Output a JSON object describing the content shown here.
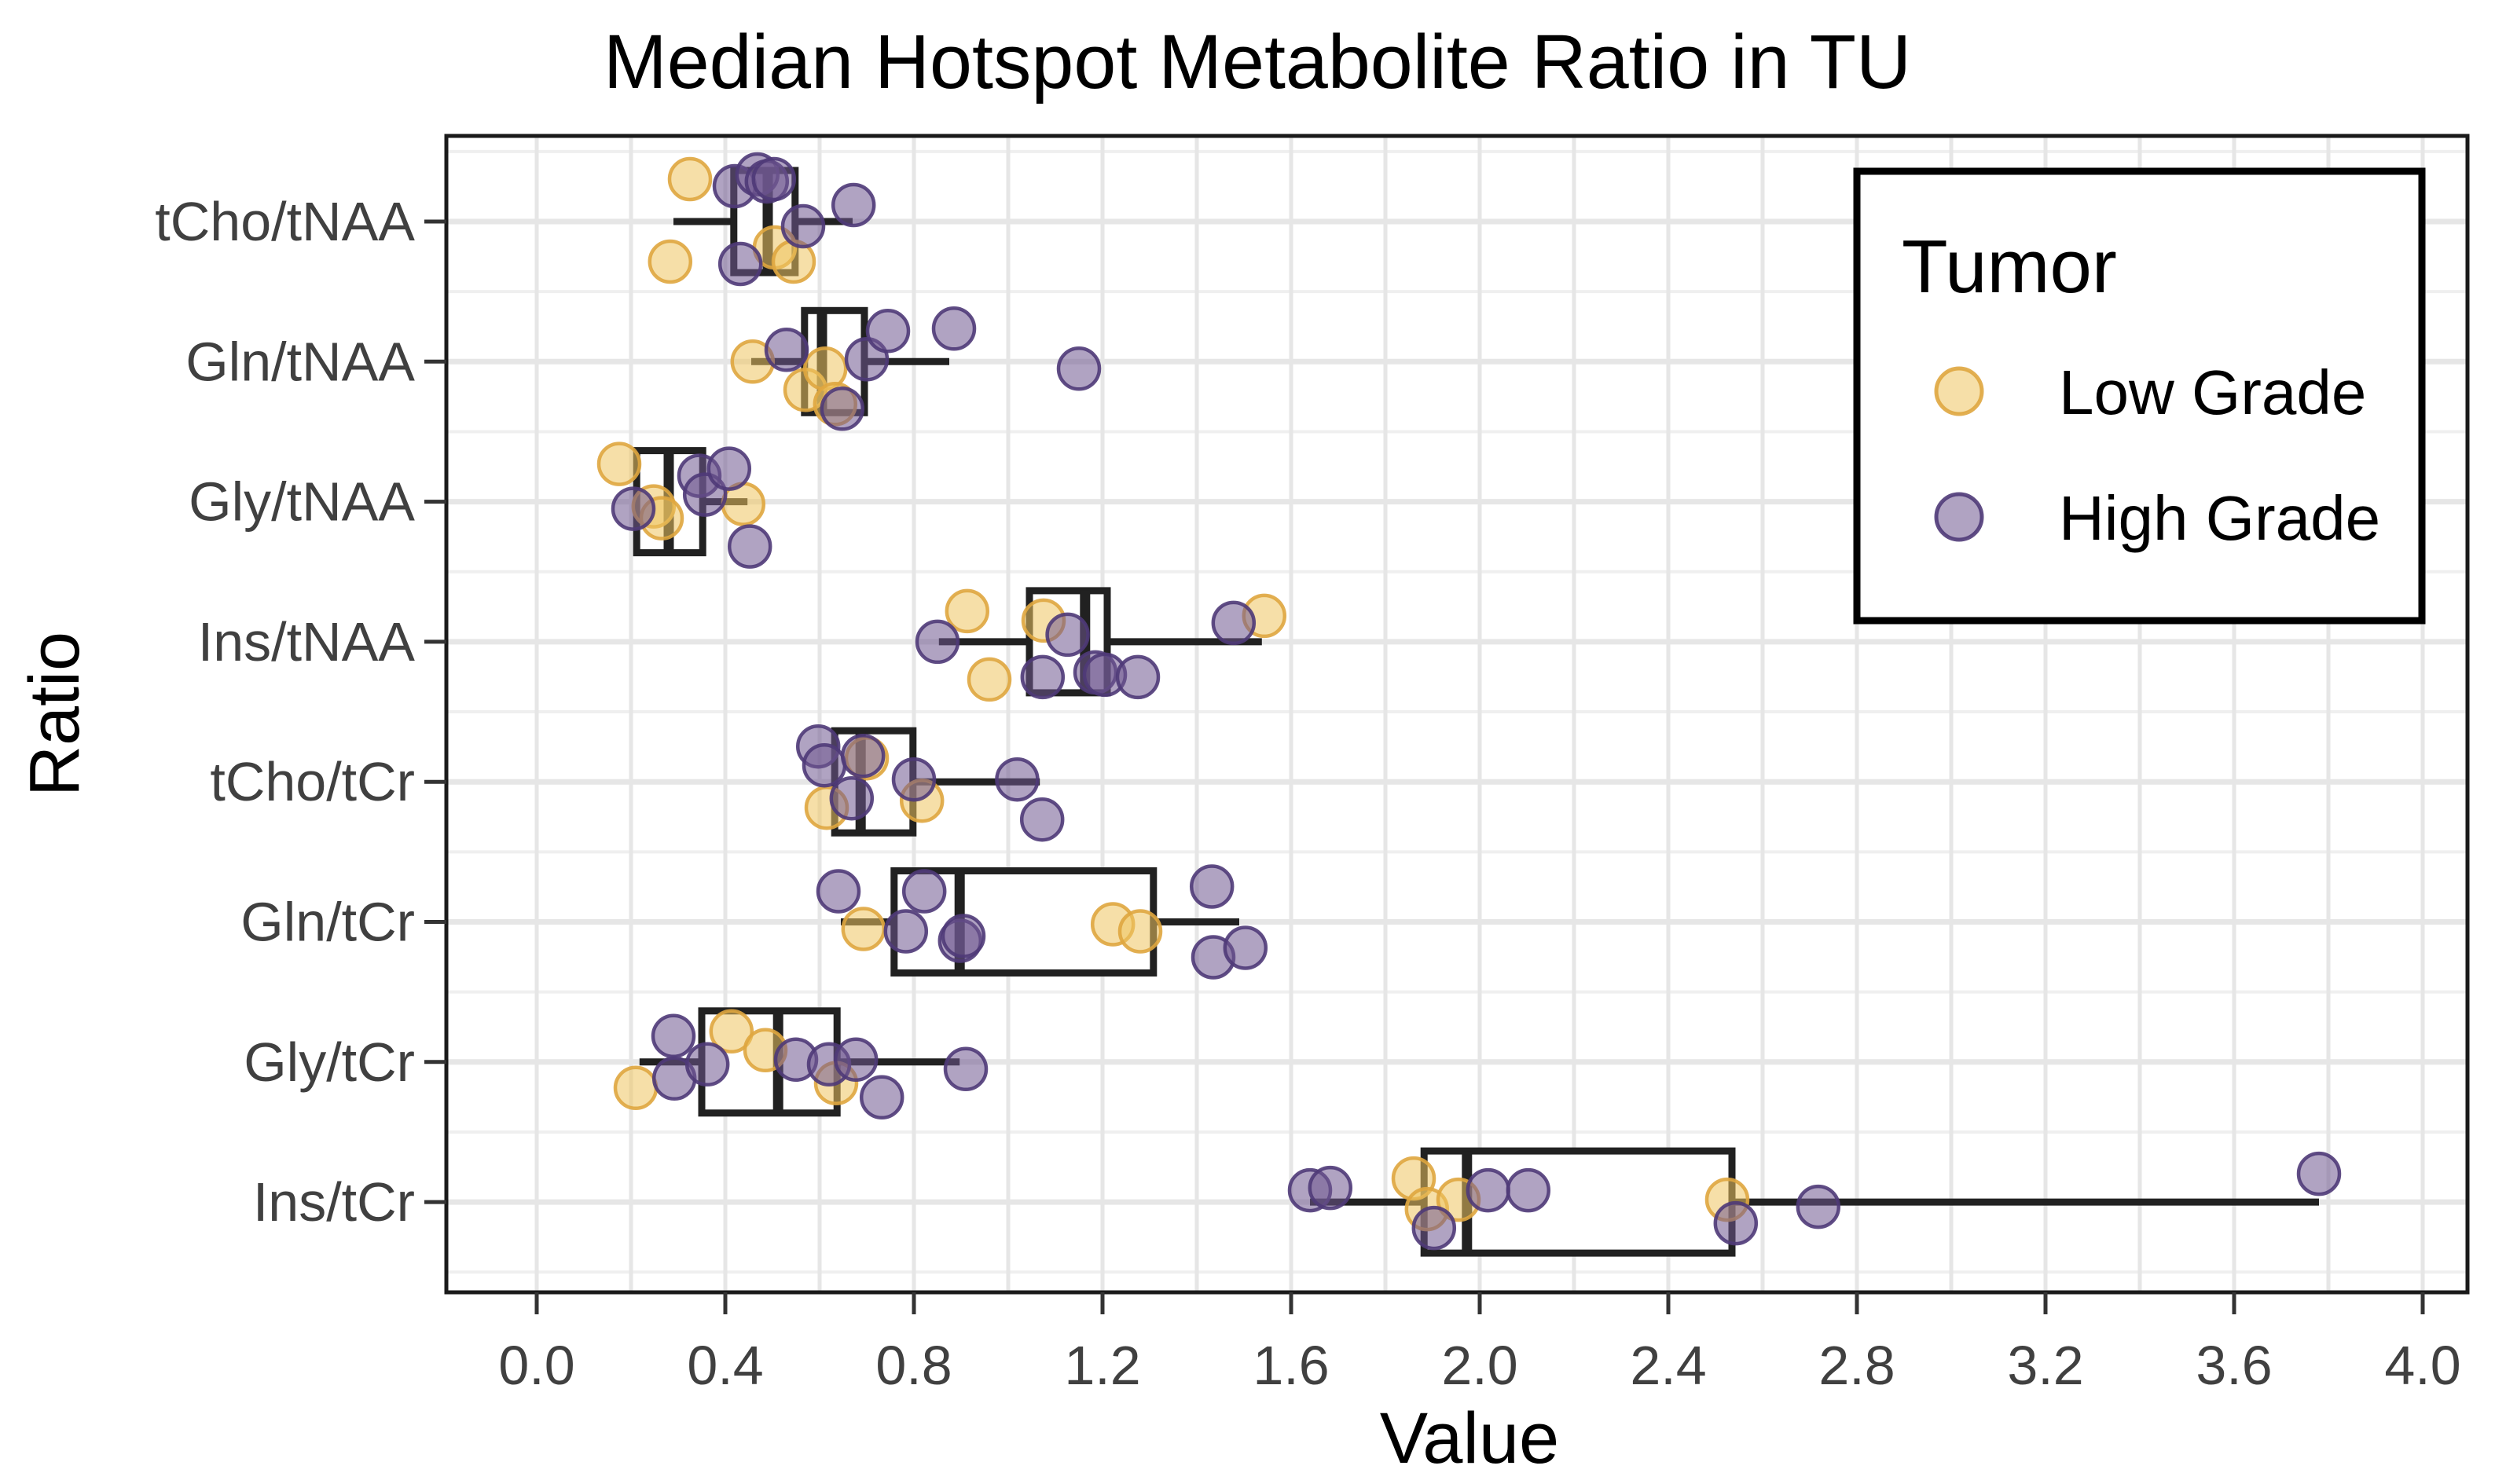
{
  "chart_data": {
    "type": "boxplot",
    "orientation": "horizontal",
    "title": "Median Hotspot Metabolite Ratio in TU",
    "xlabel": "Value",
    "ylabel": "Ratio",
    "x_ticks": [
      0.0,
      0.4,
      0.8,
      1.2,
      1.6,
      2.0,
      2.4,
      2.8,
      3.2,
      3.6,
      4.0
    ],
    "x_tick_labels": [
      "0.0",
      "0.4",
      "0.8",
      "1.2",
      "1.6",
      "2.0",
      "2.4",
      "2.8",
      "3.2",
      "3.6",
      "4.0"
    ],
    "x_minor_step": 0.2,
    "xlim": [
      -0.19,
      4.1
    ],
    "grid": true,
    "categories": [
      "tCho/tNAA",
      "Gln/tNAA",
      "Gly/tNAA",
      "Ins/tNAA",
      "tCho/tCr",
      "Gln/tCr",
      "Gly/tCr",
      "Ins/tCr"
    ],
    "legend": {
      "title": "Tumor",
      "position": "top-right",
      "entries": [
        {
          "id": "low",
          "label": "Low Grade",
          "fill": "#EFC561",
          "stroke": "#DFA63F"
        },
        {
          "id": "high",
          "label": "High Grade",
          "fill": "#6F5890",
          "stroke": "#4F3A78"
        }
      ]
    },
    "style": {
      "box_color": "#212121",
      "panel_border": "#1A1A1A",
      "grid_major": "#E6E6E6",
      "grid_minor": "#EFEFEF",
      "tick_color": "#333333",
      "axis_text": "#404040",
      "title_color": "#000000",
      "point_fill_opacity": 0.55,
      "point_stroke_opacity": 0.9
    },
    "rows": [
      {
        "ratio": "tCho/tNAA",
        "box": {
          "min": 0.29,
          "q1": 0.418,
          "median": 0.49,
          "q3": 0.548,
          "max": 0.67
        },
        "points": [
          {
            "group": "low",
            "value": 0.325,
            "jitter": -0.9
          },
          {
            "group": "low",
            "value": 0.283,
            "jitter": 0.85
          },
          {
            "group": "low",
            "value": 0.505,
            "jitter": 0.55
          },
          {
            "group": "low",
            "value": 0.545,
            "jitter": 0.85
          },
          {
            "group": "high",
            "value": 0.42,
            "jitter": -0.75
          },
          {
            "group": "high",
            "value": 0.432,
            "jitter": 0.9
          },
          {
            "group": "high",
            "value": 0.468,
            "jitter": -1.0
          },
          {
            "group": "high",
            "value": 0.488,
            "jitter": -0.85
          },
          {
            "group": "high",
            "value": 0.503,
            "jitter": -0.9
          },
          {
            "group": "high",
            "value": 0.565,
            "jitter": 0.1
          },
          {
            "group": "high",
            "value": 0.672,
            "jitter": -0.35
          }
        ]
      },
      {
        "ratio": "Gln/tNAA",
        "box": {
          "min": 0.455,
          "q1": 0.568,
          "median": 0.605,
          "q3": 0.695,
          "max": 0.875
        },
        "points": [
          {
            "group": "low",
            "value": 0.458,
            "jitter": 0.0
          },
          {
            "group": "low",
            "value": 0.57,
            "jitter": 0.6
          },
          {
            "group": "low",
            "value": 0.612,
            "jitter": 0.15
          },
          {
            "group": "low",
            "value": 0.633,
            "jitter": 0.9
          },
          {
            "group": "high",
            "value": 0.53,
            "jitter": -0.25
          },
          {
            "group": "high",
            "value": 0.648,
            "jitter": 1.0
          },
          {
            "group": "high",
            "value": 0.7,
            "jitter": -0.05
          },
          {
            "group": "high",
            "value": 0.745,
            "jitter": -0.65
          },
          {
            "group": "high",
            "value": 0.885,
            "jitter": -0.7
          },
          {
            "group": "high",
            "value": 1.15,
            "jitter": 0.15
          }
        ]
      },
      {
        "ratio": "Gly/tNAA",
        "box": {
          "min": 0.212,
          "q1": 0.212,
          "median": 0.28,
          "q3": 0.352,
          "max": 0.447
        },
        "points": [
          {
            "group": "low",
            "value": 0.175,
            "jitter": -0.8
          },
          {
            "group": "low",
            "value": 0.248,
            "jitter": 0.1
          },
          {
            "group": "low",
            "value": 0.265,
            "jitter": 0.35
          },
          {
            "group": "low",
            "value": 0.438,
            "jitter": 0.05
          },
          {
            "group": "high",
            "value": 0.205,
            "jitter": 0.15
          },
          {
            "group": "high",
            "value": 0.345,
            "jitter": -0.55
          },
          {
            "group": "high",
            "value": 0.357,
            "jitter": -0.15
          },
          {
            "group": "high",
            "value": 0.408,
            "jitter": -0.7
          },
          {
            "group": "high",
            "value": 0.452,
            "jitter": 0.95
          }
        ]
      },
      {
        "ratio": "Ins/tNAA",
        "box": {
          "min": 0.853,
          "q1": 1.045,
          "median": 1.163,
          "q3": 1.21,
          "max": 1.538
        },
        "points": [
          {
            "group": "low",
            "value": 0.913,
            "jitter": -0.65
          },
          {
            "group": "low",
            "value": 0.96,
            "jitter": 0.8
          },
          {
            "group": "low",
            "value": 1.075,
            "jitter": -0.45
          },
          {
            "group": "low",
            "value": 1.543,
            "jitter": -0.55
          },
          {
            "group": "high",
            "value": 0.85,
            "jitter": 0.0
          },
          {
            "group": "high",
            "value": 1.073,
            "jitter": 0.75
          },
          {
            "group": "high",
            "value": 1.126,
            "jitter": -0.15
          },
          {
            "group": "high",
            "value": 1.185,
            "jitter": 0.65
          },
          {
            "group": "high",
            "value": 1.205,
            "jitter": 0.7
          },
          {
            "group": "high",
            "value": 1.275,
            "jitter": 0.75
          },
          {
            "group": "high",
            "value": 1.478,
            "jitter": -0.4
          }
        ]
      },
      {
        "ratio": "tCho/tCr",
        "box": {
          "min": 0.632,
          "q1": 0.632,
          "median": 0.687,
          "q3": 0.798,
          "max": 1.067
        },
        "points": [
          {
            "group": "low",
            "value": 0.615,
            "jitter": 0.55
          },
          {
            "group": "low",
            "value": 0.7,
            "jitter": -0.5
          },
          {
            "group": "low",
            "value": 0.817,
            "jitter": 0.4
          },
          {
            "group": "high",
            "value": 0.597,
            "jitter": -0.75
          },
          {
            "group": "high",
            "value": 0.61,
            "jitter": -0.35
          },
          {
            "group": "high",
            "value": 0.668,
            "jitter": 0.35
          },
          {
            "group": "high",
            "value": 0.692,
            "jitter": -0.55
          },
          {
            "group": "high",
            "value": 0.8,
            "jitter": -0.05
          },
          {
            "group": "high",
            "value": 1.019,
            "jitter": -0.05
          },
          {
            "group": "high",
            "value": 1.072,
            "jitter": 0.8
          }
        ]
      },
      {
        "ratio": "Gln/tCr",
        "box": {
          "min": 0.645,
          "q1": 0.758,
          "median": 0.897,
          "q3": 1.308,
          "max": 1.49
        },
        "points": [
          {
            "group": "low",
            "value": 0.693,
            "jitter": 0.15
          },
          {
            "group": "low",
            "value": 1.222,
            "jitter": 0.05
          },
          {
            "group": "low",
            "value": 1.28,
            "jitter": 0.2
          },
          {
            "group": "high",
            "value": 0.64,
            "jitter": -0.65
          },
          {
            "group": "high",
            "value": 0.783,
            "jitter": 0.2
          },
          {
            "group": "high",
            "value": 0.822,
            "jitter": -0.65
          },
          {
            "group": "high",
            "value": 0.898,
            "jitter": 0.4
          },
          {
            "group": "high",
            "value": 0.905,
            "jitter": 0.3
          },
          {
            "group": "high",
            "value": 1.432,
            "jitter": -0.75
          },
          {
            "group": "high",
            "value": 1.435,
            "jitter": 0.75
          },
          {
            "group": "high",
            "value": 1.503,
            "jitter": 0.55
          }
        ]
      },
      {
        "ratio": "Gly/tCr",
        "box": {
          "min": 0.218,
          "q1": 0.35,
          "median": 0.512,
          "q3": 0.637,
          "max": 0.897
        },
        "points": [
          {
            "group": "low",
            "value": 0.21,
            "jitter": 0.55
          },
          {
            "group": "low",
            "value": 0.413,
            "jitter": -0.65
          },
          {
            "group": "low",
            "value": 0.485,
            "jitter": -0.25
          },
          {
            "group": "low",
            "value": 0.635,
            "jitter": 0.45
          },
          {
            "group": "high",
            "value": 0.29,
            "jitter": -0.55
          },
          {
            "group": "high",
            "value": 0.292,
            "jitter": 0.35
          },
          {
            "group": "high",
            "value": 0.362,
            "jitter": 0.05
          },
          {
            "group": "high",
            "value": 0.55,
            "jitter": -0.05
          },
          {
            "group": "high",
            "value": 0.62,
            "jitter": 0.05
          },
          {
            "group": "high",
            "value": 0.677,
            "jitter": -0.05
          },
          {
            "group": "high",
            "value": 0.732,
            "jitter": 0.75
          },
          {
            "group": "high",
            "value": 0.91,
            "jitter": 0.15
          }
        ]
      },
      {
        "ratio": "Ins/tCr",
        "box": {
          "min": 1.64,
          "q1": 1.882,
          "median": 1.973,
          "q3": 2.535,
          "max": 3.78
        },
        "points": [
          {
            "group": "low",
            "value": 1.86,
            "jitter": -0.5
          },
          {
            "group": "low",
            "value": 1.888,
            "jitter": 0.15
          },
          {
            "group": "low",
            "value": 1.955,
            "jitter": -0.05
          },
          {
            "group": "low",
            "value": 2.525,
            "jitter": -0.05
          },
          {
            "group": "high",
            "value": 1.64,
            "jitter": -0.25
          },
          {
            "group": "high",
            "value": 1.683,
            "jitter": -0.3
          },
          {
            "group": "high",
            "value": 1.903,
            "jitter": 0.55
          },
          {
            "group": "high",
            "value": 2.018,
            "jitter": -0.25
          },
          {
            "group": "high",
            "value": 2.103,
            "jitter": -0.25
          },
          {
            "group": "high",
            "value": 2.543,
            "jitter": 0.45
          },
          {
            "group": "high",
            "value": 2.718,
            "jitter": 0.1
          },
          {
            "group": "high",
            "value": 3.78,
            "jitter": -0.6
          }
        ]
      }
    ]
  }
}
